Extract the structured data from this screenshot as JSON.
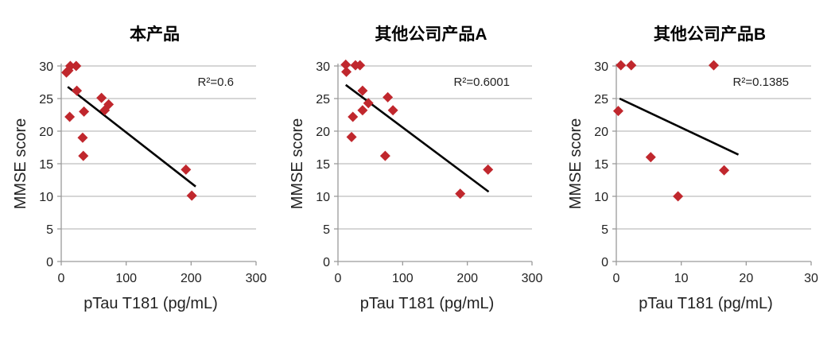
{
  "chart_data": [
    {
      "type": "scatter",
      "title": "本产品",
      "xlabel": "pTau T181 (pg/mL)",
      "ylabel": "MMSE score",
      "xlim": [
        0,
        300
      ],
      "ylim": [
        0,
        30
      ],
      "xticks": [
        "0",
        "100",
        "200",
        "300"
      ],
      "yticks": [
        "0",
        "5",
        "10",
        "15",
        "20",
        "25",
        "30"
      ],
      "grid": "horizontal",
      "marker_color": "#c0272d",
      "annotation": "R²=0.6",
      "points": [
        [
          8,
          29
        ],
        [
          14,
          30
        ],
        [
          23,
          30
        ],
        [
          11,
          29.3
        ],
        [
          24,
          26.2
        ],
        [
          13,
          22.2
        ],
        [
          35,
          23
        ],
        [
          33,
          19
        ],
        [
          34,
          16.2
        ],
        [
          62,
          25.1
        ],
        [
          67,
          23.2
        ],
        [
          73,
          24.1
        ],
        [
          192,
          14.1
        ],
        [
          201,
          10.1
        ]
      ],
      "trendline": [
        [
          10,
          26.8
        ],
        [
          207,
          11.5
        ]
      ]
    },
    {
      "type": "scatter",
      "title": "其他公司产品A",
      "xlabel": "pTau T181 (pg/mL)",
      "ylabel": "MMSE score",
      "xlim": [
        0,
        300
      ],
      "ylim": [
        0,
        30
      ],
      "xticks": [
        "0",
        "100",
        "200",
        "300"
      ],
      "yticks": [
        "0",
        "5",
        "10",
        "15",
        "20",
        "25",
        "30"
      ],
      "grid": "horizontal",
      "marker_color": "#c0272d",
      "annotation": "R²=0.6001",
      "points": [
        [
          12,
          30.2
        ],
        [
          13,
          29.1
        ],
        [
          27,
          30.1
        ],
        [
          34,
          30.1
        ],
        [
          38,
          26.2
        ],
        [
          47,
          24.3
        ],
        [
          38,
          23.2
        ],
        [
          23,
          22.2
        ],
        [
          21,
          19.1
        ],
        [
          73,
          16.2
        ],
        [
          77,
          25.2
        ],
        [
          85,
          23.2
        ],
        [
          189,
          10.4
        ],
        [
          232,
          14.1
        ]
      ],
      "trendline": [
        [
          12,
          27.1
        ],
        [
          233,
          10.7
        ]
      ]
    },
    {
      "type": "scatter",
      "title": "其他公司产品B",
      "xlabel": "pTau T181 (pg/mL)",
      "ylabel": "MMSE score",
      "xlim": [
        0,
        30
      ],
      "ylim": [
        0,
        30
      ],
      "xticks": [
        "0",
        "10",
        "20",
        "30"
      ],
      "yticks": [
        "0",
        "5",
        "10",
        "15",
        "20",
        "25",
        "30"
      ],
      "grid": "horizontal",
      "marker_color": "#c0272d",
      "annotation": "R²=0.1385",
      "points": [
        [
          0.3,
          23.1
        ],
        [
          0.7,
          30.1
        ],
        [
          2.3,
          30.1
        ],
        [
          15,
          30.1
        ],
        [
          5.3,
          16
        ],
        [
          9.5,
          10
        ],
        [
          16.6,
          14
        ]
      ],
      "trendline": [
        [
          0.5,
          25
        ],
        [
          18.8,
          16.4
        ]
      ]
    }
  ]
}
